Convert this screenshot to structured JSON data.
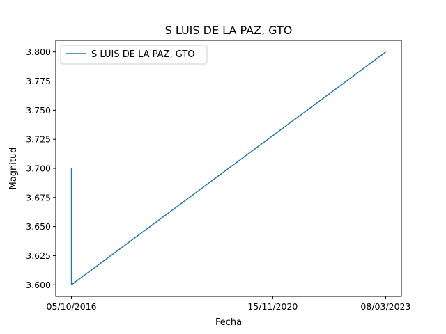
{
  "chart_data": {
    "type": "line",
    "title": "S LUIS DE LA PAZ, GTO",
    "xlabel": "Fecha",
    "ylabel": "Magnitud",
    "x_tick_labels": [
      "05/10/2016",
      "15/11/2020",
      "08/03/2023"
    ],
    "y_ticks": [
      3.6,
      3.625,
      3.65,
      3.675,
      3.7,
      3.725,
      3.75,
      3.775,
      3.8
    ],
    "y_tick_labels": [
      "3.600",
      "3.625",
      "3.650",
      "3.675",
      "3.700",
      "3.725",
      "3.750",
      "3.775",
      "3.800"
    ],
    "ylim": [
      3.59,
      3.81
    ],
    "grid": false,
    "legend_position": "upper-left",
    "series": [
      {
        "name": "S LUIS DE LA PAZ, GTO",
        "color": "#1f77b4",
        "x": [
          "05/10/2016",
          "05/10/2016",
          "08/03/2023"
        ],
        "y": [
          3.7,
          3.6,
          3.8
        ]
      }
    ]
  }
}
